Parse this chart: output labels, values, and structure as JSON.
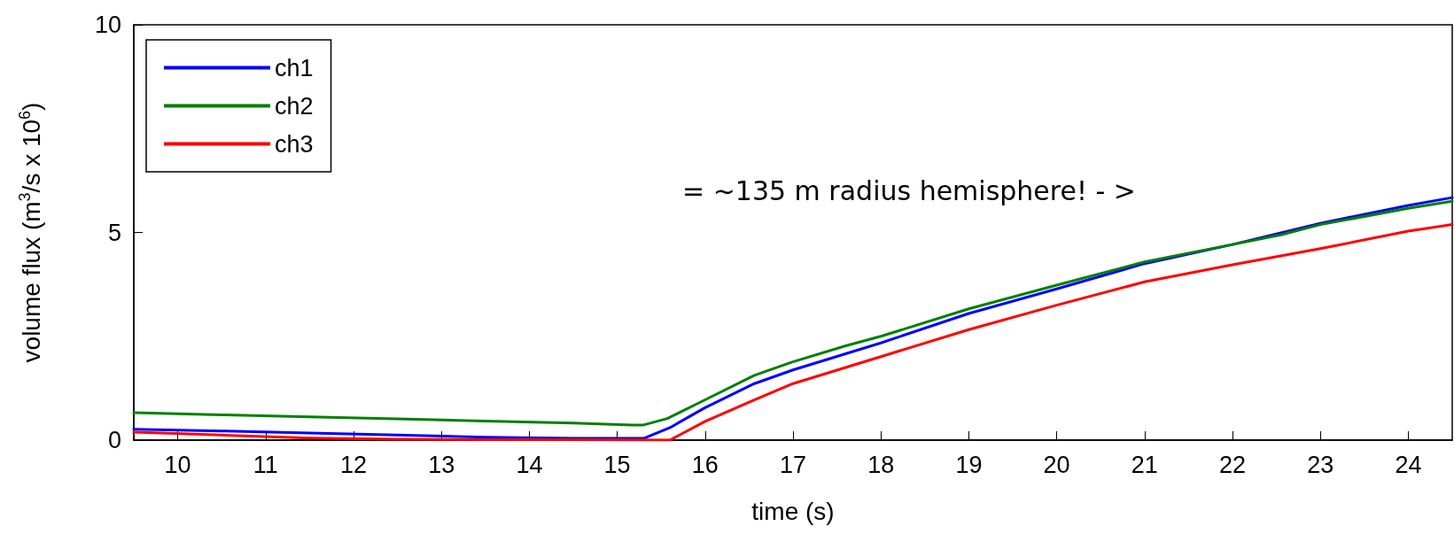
{
  "chart_data": {
    "type": "line",
    "xlabel": "time (s)",
    "ylabel": "volume flux (m$^{3}$/s x 10$^{6}$)",
    "xlim": [
      9.5,
      24.5
    ],
    "xticks": [
      10,
      11,
      12,
      13,
      14,
      15,
      16,
      17,
      18,
      19,
      20,
      21,
      22,
      23,
      24
    ],
    "ylim": [
      0,
      10
    ],
    "yticks": [
      0,
      5,
      10
    ],
    "grid": false,
    "legend": "top left",
    "line_style": "solid",
    "marker": "none",
    "annotations": [
      "= ~135 m radius hemisphere! - >"
    ],
    "series": [
      {
        "name": "ch1",
        "color": "#0000ff",
        "x": [
          9.5,
          10.5,
          11.5,
          12.5,
          13.5,
          14.5,
          15.3,
          15.6,
          16,
          16.56,
          17,
          18,
          19,
          20,
          21,
          22,
          23,
          24,
          24.5
        ],
        "values": [
          0.26,
          0.22,
          0.17,
          0.12,
          0.07,
          0.04,
          0.04,
          0.3,
          0.78,
          1.36,
          1.69,
          2.34,
          3.05,
          3.64,
          4.25,
          4.71,
          5.22,
          5.65,
          5.84
        ]
      },
      {
        "name": "ch2",
        "color": "#008000",
        "x": [
          9.5,
          10.5,
          11.5,
          12.5,
          13.5,
          14.5,
          15.17,
          15.29,
          15.57,
          16,
          16.56,
          16.99,
          17.6,
          18,
          19,
          20,
          21,
          22,
          22.55,
          23,
          24,
          24.5
        ],
        "values": [
          0.66,
          0.61,
          0.56,
          0.51,
          0.46,
          0.41,
          0.36,
          0.36,
          0.52,
          0.97,
          1.56,
          1.88,
          2.27,
          2.5,
          3.16,
          3.73,
          4.29,
          4.71,
          4.94,
          5.19,
          5.58,
          5.75
        ]
      },
      {
        "name": "ch3",
        "color": "#ff0000",
        "x": [
          9.5,
          10.5,
          11.5,
          12.5,
          13.5,
          14.5,
          15.6,
          16,
          16.56,
          17,
          18,
          19,
          20,
          21,
          22,
          23,
          24,
          24.5
        ],
        "values": [
          0.19,
          0.12,
          0.05,
          0.02,
          0.01,
          0.01,
          0,
          0.45,
          0.97,
          1.36,
          2.01,
          2.66,
          3.25,
          3.81,
          4.22,
          4.61,
          5.03,
          5.19
        ]
      }
    ]
  }
}
